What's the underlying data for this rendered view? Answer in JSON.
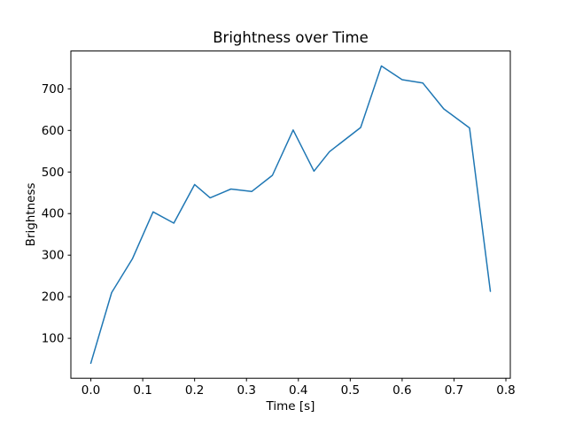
{
  "figure": {
    "background": "#ffffff",
    "frame_color": "#000000"
  },
  "chart_data": {
    "type": "line",
    "title": "Brightness over Time",
    "xlabel": "Time [s]",
    "ylabel": "Brightness",
    "x": [
      0.0,
      0.04,
      0.08,
      0.12,
      0.16,
      0.2,
      0.23,
      0.27,
      0.31,
      0.35,
      0.39,
      0.43,
      0.46,
      0.52,
      0.56,
      0.6,
      0.64,
      0.68,
      0.73,
      0.77
    ],
    "y": [
      40,
      210,
      291,
      404,
      377,
      470,
      438,
      459,
      453,
      492,
      601,
      502,
      549,
      607,
      755,
      722,
      714,
      652,
      606,
      213
    ],
    "series": [
      {
        "name": "brightness",
        "color": "#1f77b4"
      }
    ],
    "xticks": [
      0.0,
      0.1,
      0.2,
      0.3,
      0.4,
      0.5,
      0.6,
      0.7,
      0.8
    ],
    "xtick_labels": [
      "0.0",
      "0.1",
      "0.2",
      "0.3",
      "0.4",
      "0.5",
      "0.6",
      "0.7",
      "0.8"
    ],
    "yticks": [
      100,
      200,
      300,
      400,
      500,
      600,
      700
    ],
    "ytick_labels": [
      "100",
      "200",
      "300",
      "400",
      "500",
      "600",
      "700"
    ],
    "xlim": [
      -0.0385,
      0.8085
    ],
    "ylim": [
      4,
      791
    ],
    "grid": false,
    "legend_position": "none",
    "line_color": "#1f77b4",
    "line_width": 1.5
  }
}
